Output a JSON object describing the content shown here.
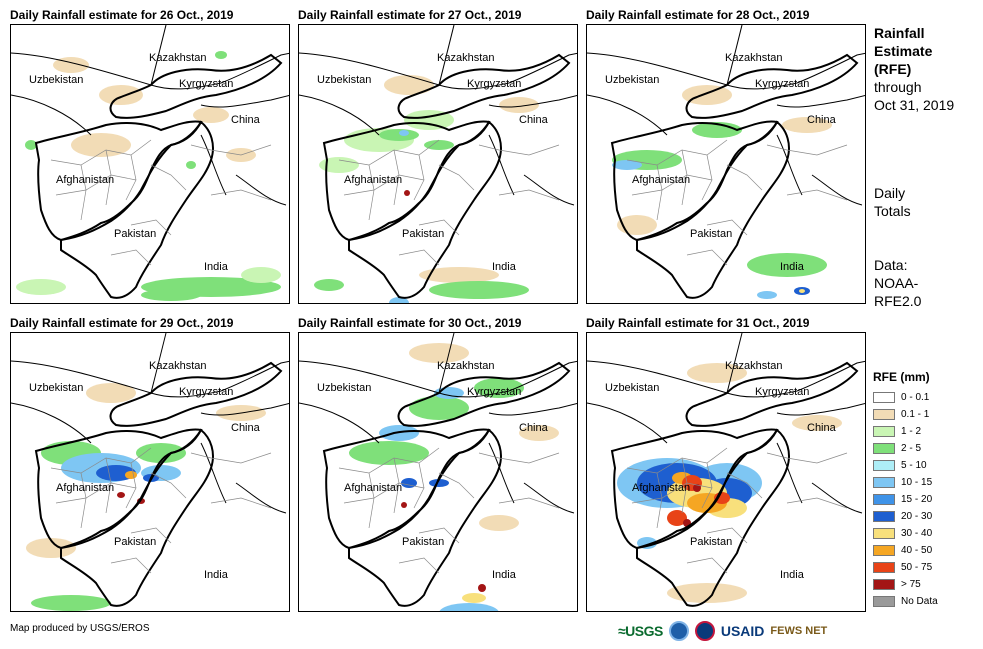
{
  "panels": [
    {
      "title": "Daily Rainfall estimate for 26 Oct., 2019",
      "variant": "26"
    },
    {
      "title": "Daily Rainfall estimate for 27 Oct., 2019",
      "variant": "27"
    },
    {
      "title": "Daily Rainfall estimate for 28 Oct., 2019",
      "variant": "28"
    },
    {
      "title": "Daily Rainfall estimate for 29 Oct., 2019",
      "variant": "29"
    },
    {
      "title": "Daily Rainfall estimate for 30 Oct., 2019",
      "variant": "30"
    },
    {
      "title": "Daily Rainfall estimate for 31 Oct., 2019",
      "variant": "31"
    }
  ],
  "map_labels": {
    "kazakhstan": "Kazakhstan",
    "uzbekistan": "Uzbekistan",
    "kyrgyzstan": "Kyrgyzstan",
    "china": "China",
    "afghanistan": "Afghanistan",
    "pakistan": "Pakistan",
    "india": "India"
  },
  "side": {
    "title_lines": [
      "Rainfall",
      "Estimate",
      "(RFE)"
    ],
    "through_lines": [
      "through",
      "Oct 31, 2019"
    ],
    "daily_lines": [
      "Daily",
      "Totals"
    ],
    "data_lines": [
      "Data:",
      "NOAA-",
      "RFE2.0"
    ]
  },
  "legend": {
    "title": "RFE (mm)",
    "items": [
      {
        "label": "0 - 0.1",
        "color": "#ffffff"
      },
      {
        "label": "0.1 - 1",
        "color": "#f2dcb6"
      },
      {
        "label": "1 - 2",
        "color": "#c9f5b4"
      },
      {
        "label": "2 - 5",
        "color": "#7fe07a"
      },
      {
        "label": "5 - 10",
        "color": "#aeeef7"
      },
      {
        "label": "10 - 15",
        "color": "#7ec6f3"
      },
      {
        "label": "15 - 20",
        "color": "#3f93e8"
      },
      {
        "label": "20 - 30",
        "color": "#1e5fd0"
      },
      {
        "label": "30 - 40",
        "color": "#f8e07c"
      },
      {
        "label": "40 - 50",
        "color": "#f5a623"
      },
      {
        "label": "50 - 75",
        "color": "#e84317"
      },
      {
        "label": "> 75",
        "color": "#a31515"
      },
      {
        "label": "No Data",
        "color": "#9a9a9a"
      }
    ]
  },
  "credit": "Map produced by USGS/EROS",
  "logos": {
    "usgs": "≈USGS",
    "usaid": "USAID",
    "fews": "FEWS NET"
  }
}
